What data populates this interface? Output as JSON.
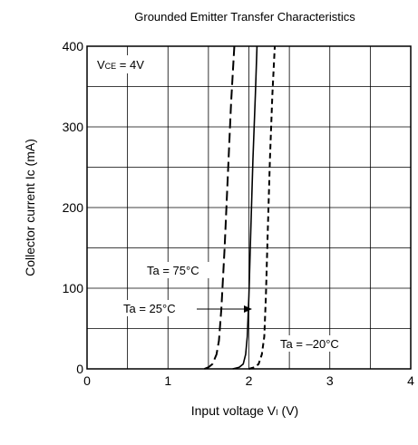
{
  "chart_data": {
    "type": "line",
    "title": "Grounded Emitter Transfer Characteristics",
    "xlabel": {
      "main": "Input voltage  V",
      "sub": "I",
      "unit": " (V)"
    },
    "ylabel": "Collector current  Ic (mA)",
    "xlim": [
      0,
      4
    ],
    "ylim": [
      0,
      400
    ],
    "x_ticks": [
      "0",
      "1",
      "2",
      "3",
      "4"
    ],
    "y_ticks": [
      "0",
      "100",
      "200",
      "300",
      "400"
    ],
    "grid": true,
    "condition": {
      "prefix": "V",
      "sub": "CE",
      "suffix": " = 4V"
    },
    "series": [
      {
        "name": "Ta = 75°C",
        "style": "long-dash",
        "points": [
          [
            1.45,
            0
          ],
          [
            1.5,
            2
          ],
          [
            1.55,
            6
          ],
          [
            1.6,
            18
          ],
          [
            1.63,
            35
          ],
          [
            1.66,
            75
          ],
          [
            1.7,
            150
          ],
          [
            1.74,
            240
          ],
          [
            1.78,
            330
          ],
          [
            1.82,
            400
          ]
        ]
      },
      {
        "name": "Ta = 25°C",
        "style": "solid",
        "points": [
          [
            1.8,
            0
          ],
          [
            1.88,
            2
          ],
          [
            1.93,
            6
          ],
          [
            1.96,
            18
          ],
          [
            1.98,
            40
          ],
          [
            2.0,
            90
          ],
          [
            2.02,
            160
          ],
          [
            2.05,
            260
          ],
          [
            2.08,
            340
          ],
          [
            2.1,
            400
          ]
        ]
      },
      {
        "name": "Ta = –20°C",
        "style": "short-dash",
        "points": [
          [
            2.0,
            0
          ],
          [
            2.07,
            2
          ],
          [
            2.12,
            6
          ],
          [
            2.16,
            18
          ],
          [
            2.19,
            40
          ],
          [
            2.21,
            90
          ],
          [
            2.23,
            160
          ],
          [
            2.26,
            260
          ],
          [
            2.29,
            340
          ],
          [
            2.32,
            400
          ]
        ]
      }
    ]
  }
}
